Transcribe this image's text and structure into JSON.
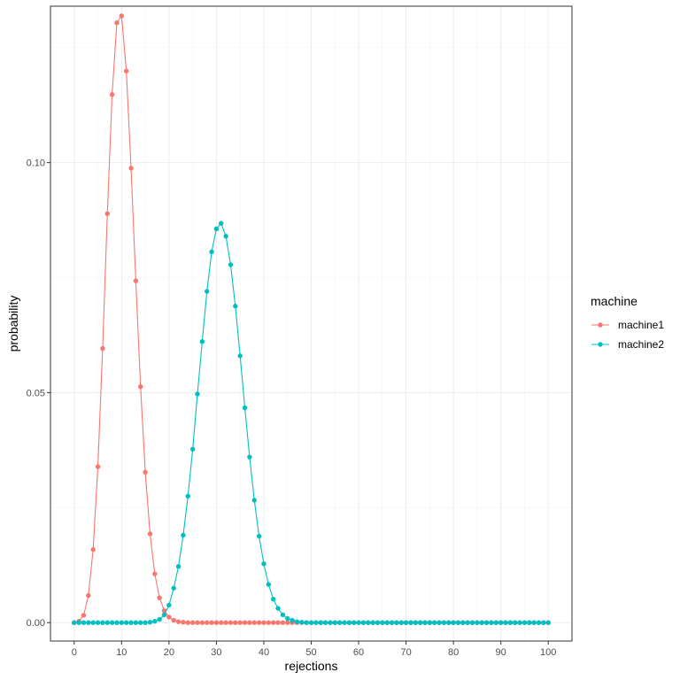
{
  "chart_data": {
    "type": "line",
    "xlabel": "rejections",
    "ylabel": "probability",
    "xlim": [
      -5,
      105
    ],
    "ylim": [
      -0.004,
      0.134
    ],
    "x_ticks": [
      0,
      10,
      20,
      30,
      40,
      50,
      60,
      70,
      80,
      90,
      100
    ],
    "x_tick_labels": [
      "0",
      "10",
      "20",
      "30",
      "40",
      "50",
      "60",
      "70",
      "80",
      "90",
      "100"
    ],
    "y_ticks": [
      0.0,
      0.05,
      0.1
    ],
    "y_tick_labels": [
      "0.00",
      "0.05",
      "0.10"
    ],
    "grid": true,
    "legend": {
      "title": "machine",
      "position": "right",
      "entries": [
        "machine1",
        "machine2"
      ]
    },
    "x": [
      0,
      1,
      2,
      3,
      4,
      5,
      6,
      7,
      8,
      9,
      10,
      11,
      12,
      13,
      14,
      15,
      16,
      17,
      18,
      19,
      20,
      21,
      22,
      23,
      24,
      25,
      26,
      27,
      28,
      29,
      30,
      31,
      32,
      33,
      34,
      35,
      36,
      37,
      38,
      39,
      40,
      41,
      42,
      43,
      44,
      45,
      46,
      47,
      48,
      49,
      50,
      51,
      52,
      53,
      54,
      55,
      56,
      57,
      58,
      59,
      60,
      61,
      62,
      63,
      64,
      65,
      66,
      67,
      68,
      69,
      70,
      71,
      72,
      73,
      74,
      75,
      76,
      77,
      78,
      79,
      80,
      81,
      82,
      83,
      84,
      85,
      86,
      87,
      88,
      89,
      90,
      91,
      92,
      93,
      94,
      95,
      96,
      97,
      98,
      99,
      100
    ],
    "series": [
      {
        "name": "machine1",
        "color": "#F8766D",
        "values": [
          0.0,
          0.0003,
          0.0016,
          0.0059,
          0.0159,
          0.0339,
          0.0596,
          0.0889,
          0.1148,
          0.1304,
          0.1319,
          0.1199,
          0.0988,
          0.0743,
          0.0513,
          0.0327,
          0.0193,
          0.0106,
          0.0054,
          0.0026,
          0.0012,
          0.0005,
          0.0002,
          0.0001,
          0.0,
          0.0,
          0.0,
          0.0,
          0.0,
          0.0,
          0.0,
          0.0,
          0.0,
          0.0,
          0.0,
          0.0,
          0.0,
          0.0,
          0.0,
          0.0,
          0.0,
          0.0,
          0.0,
          0.0,
          0.0,
          0.0,
          0.0,
          0.0,
          0.0,
          0.0,
          0.0,
          0.0,
          0.0,
          0.0,
          0.0,
          0.0,
          0.0,
          0.0,
          0.0,
          0.0,
          0.0,
          0.0,
          0.0,
          0.0,
          0.0,
          0.0,
          0.0,
          0.0,
          0.0,
          0.0,
          0.0,
          0.0,
          0.0,
          0.0,
          0.0,
          0.0,
          0.0,
          0.0,
          0.0,
          0.0,
          0.0,
          0.0,
          0.0,
          0.0,
          0.0,
          0.0,
          0.0,
          0.0,
          0.0,
          0.0,
          0.0,
          0.0,
          0.0,
          0.0,
          0.0,
          0.0,
          0.0,
          0.0,
          0.0,
          0.0,
          0.0
        ]
      },
      {
        "name": "machine2",
        "color": "#00BFC4",
        "values": [
          0.0,
          0.0,
          0.0,
          0.0,
          0.0,
          0.0,
          0.0,
          0.0,
          0.0,
          0.0,
          0.0,
          0.0,
          0.0,
          0.0,
          0.0,
          0.0,
          0.0001,
          0.0003,
          0.0007,
          0.0017,
          0.0038,
          0.0075,
          0.0122,
          0.019,
          0.0275,
          0.0377,
          0.0497,
          0.0611,
          0.072,
          0.0806,
          0.0856,
          0.0868,
          0.084,
          0.0778,
          0.0688,
          0.058,
          0.0467,
          0.036,
          0.0266,
          0.0188,
          0.0128,
          0.0083,
          0.0051,
          0.0031,
          0.0017,
          0.0009,
          0.0005,
          0.0002,
          0.0001,
          0.0,
          0.0,
          0.0,
          0.0,
          0.0,
          0.0,
          0.0,
          0.0,
          0.0,
          0.0,
          0.0,
          0.0,
          0.0,
          0.0,
          0.0,
          0.0,
          0.0,
          0.0,
          0.0,
          0.0,
          0.0,
          0.0,
          0.0,
          0.0,
          0.0,
          0.0,
          0.0,
          0.0,
          0.0,
          0.0,
          0.0,
          0.0,
          0.0,
          0.0,
          0.0,
          0.0,
          0.0,
          0.0,
          0.0,
          0.0,
          0.0,
          0.0,
          0.0,
          0.0,
          0.0,
          0.0,
          0.0,
          0.0,
          0.0,
          0.0,
          0.0,
          0.0
        ]
      }
    ]
  }
}
